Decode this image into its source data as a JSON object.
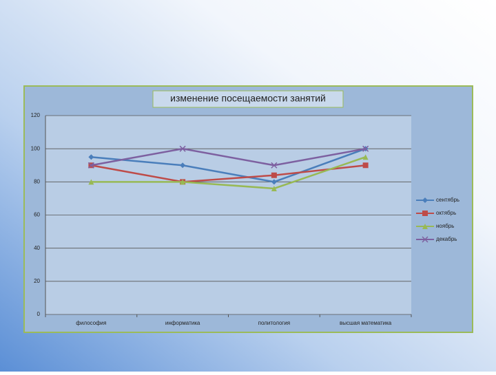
{
  "chart_data": {
    "type": "line",
    "title": "изменение посещаемости занятий",
    "categories": [
      "философия",
      "информатика",
      "политология",
      "высшая математика"
    ],
    "series": [
      {
        "name": "сентябрь",
        "color": "#4a7ebb",
        "marker": "diamond",
        "values": [
          95,
          90,
          80,
          100
        ]
      },
      {
        "name": "октябрь",
        "color": "#be4b48",
        "marker": "square",
        "values": [
          90,
          80,
          84,
          90
        ]
      },
      {
        "name": "ноябрь",
        "color": "#98b954",
        "marker": "triangle",
        "values": [
          80,
          80,
          76,
          95
        ]
      },
      {
        "name": "декабрь",
        "color": "#7d60a0",
        "marker": "x",
        "values": [
          90,
          100,
          90,
          100
        ]
      }
    ],
    "ylim": [
      0,
      120
    ],
    "yticks": [
      0,
      20,
      40,
      60,
      80,
      100,
      120
    ],
    "grid": true,
    "legend": "right"
  }
}
